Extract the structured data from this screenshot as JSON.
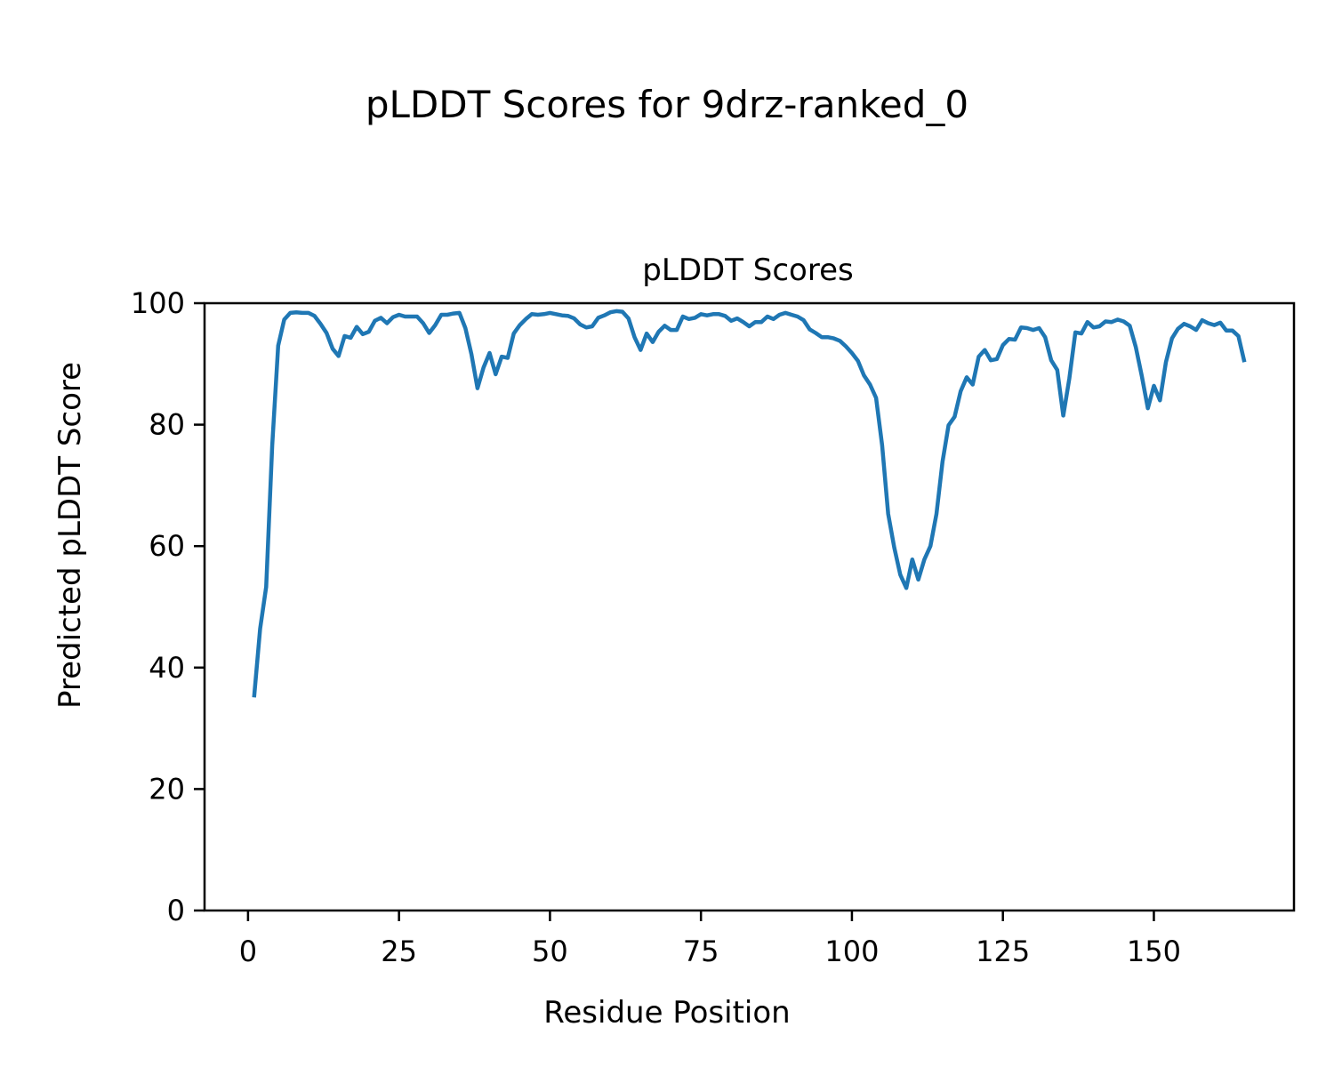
{
  "figure": {
    "suptitle": "pLDDT Scores for 9drz-ranked_0"
  },
  "chart_data": {
    "type": "line",
    "title": "pLDDT Scores",
    "xlabel": "Residue Position",
    "ylabel": "Predicted pLDDT Score",
    "xlim": [
      -7.2,
      173.2
    ],
    "ylim": [
      0,
      100
    ],
    "xticks": [
      0,
      25,
      50,
      75,
      100,
      125,
      150
    ],
    "yticks": [
      0,
      20,
      40,
      60,
      80,
      100
    ],
    "grid": false,
    "line_color": "#1f77b4",
    "series": [
      {
        "x": [
          1,
          2,
          3,
          4,
          5,
          6,
          7,
          8,
          9,
          10,
          11,
          12,
          13,
          14,
          15,
          16,
          17,
          18,
          19,
          20,
          21,
          22,
          23,
          24,
          25,
          26,
          27,
          28,
          29,
          30,
          31,
          32,
          33,
          34,
          35,
          36,
          37,
          38,
          39,
          40,
          41,
          42,
          43,
          44,
          45,
          46,
          47,
          48,
          49,
          50,
          51,
          52,
          53,
          54,
          55,
          56,
          57,
          58,
          59,
          60,
          61,
          62,
          63,
          64,
          65,
          66,
          67,
          68,
          69,
          70,
          71,
          72,
          73,
          74,
          75,
          76,
          77,
          78,
          79,
          80,
          81,
          82,
          83,
          84,
          85,
          86,
          87,
          88,
          89,
          90,
          91,
          92,
          93,
          94,
          95,
          96,
          97,
          98,
          99,
          100,
          101,
          102,
          103,
          104,
          105,
          106,
          107,
          108,
          109,
          110,
          111,
          112,
          113,
          114,
          115,
          116,
          117,
          118,
          119,
          120,
          121,
          122,
          123,
          124,
          125,
          126,
          127,
          128,
          129,
          130,
          131,
          132,
          133,
          134,
          135,
          136,
          137,
          138,
          139,
          140,
          141,
          142,
          143,
          144,
          145,
          146,
          147,
          148,
          149,
          150,
          151,
          152,
          153,
          154,
          155,
          156,
          157,
          158,
          159,
          160,
          161,
          162,
          163,
          164,
          165
        ],
        "y": [
          35.1,
          46.4,
          53.3,
          76.6,
          93.0,
          97.3,
          98.4,
          98.5,
          98.4,
          98.4,
          97.9,
          96.6,
          95.1,
          92.5,
          91.3,
          94.6,
          94.3,
          96.1,
          94.9,
          95.3,
          97.1,
          97.6,
          96.7,
          97.7,
          98.1,
          97.8,
          97.8,
          97.8,
          96.7,
          95.1,
          96.4,
          98.1,
          98.1,
          98.3,
          98.4,
          95.9,
          91.6,
          86.0,
          89.4,
          91.8,
          88.3,
          91.2,
          91.0,
          95.0,
          96.4,
          97.4,
          98.2,
          98.1,
          98.2,
          98.4,
          98.2,
          98.0,
          97.9,
          97.5,
          96.5,
          96.0,
          96.2,
          97.6,
          98.0,
          98.5,
          98.7,
          98.6,
          97.5,
          94.4,
          92.3,
          95.0,
          93.6,
          95.3,
          96.3,
          95.6,
          95.6,
          97.8,
          97.4,
          97.6,
          98.2,
          98.0,
          98.2,
          98.2,
          97.9,
          97.1,
          97.5,
          96.9,
          96.2,
          96.9,
          96.9,
          97.8,
          97.4,
          98.1,
          98.4,
          98.1,
          97.8,
          97.2,
          95.7,
          95.1,
          94.4,
          94.4,
          94.2,
          93.8,
          92.9,
          91.8,
          90.5,
          88.1,
          86.6,
          84.4,
          76.6,
          65.3,
          59.8,
          55.3,
          53.1,
          57.8,
          54.5,
          57.8,
          60.0,
          65.3,
          73.9,
          79.9,
          81.3,
          85.5,
          87.8,
          86.6,
          91.2,
          92.3,
          90.6,
          90.8,
          93.1,
          94.1,
          94.0,
          96.0,
          95.9,
          95.6,
          95.9,
          94.4,
          90.6,
          89.0,
          81.5,
          87.6,
          95.2,
          95.0,
          96.9,
          96.0,
          96.2,
          97.0,
          96.9,
          97.3,
          97.0,
          96.3,
          92.8,
          88.0,
          82.7,
          86.4,
          84.0,
          90.3,
          94.2,
          95.8,
          96.6,
          96.2,
          95.6,
          97.2,
          96.7,
          96.4,
          96.8,
          95.5,
          95.5,
          94.6,
          90.3
        ]
      }
    ]
  }
}
